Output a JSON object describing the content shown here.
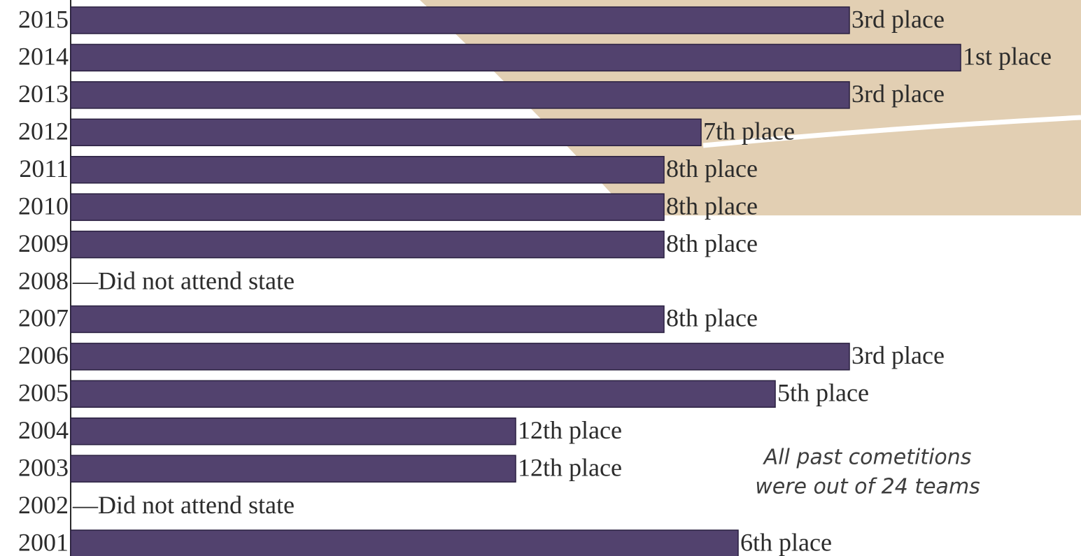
{
  "chart_data": {
    "type": "bar",
    "orientation": "horizontal",
    "categories": [
      "2015",
      "2014",
      "2013",
      "2012",
      "2011",
      "2010",
      "2009",
      "2008",
      "2007",
      "2006",
      "2005",
      "2004",
      "2003",
      "2002",
      "2001"
    ],
    "values": [
      21,
      24,
      21,
      17,
      16,
      16,
      16,
      null,
      16,
      21,
      19,
      12,
      12,
      null,
      18
    ],
    "value_labels": [
      "3rd place",
      "1st place",
      "3rd place",
      "7th place",
      "8th place",
      "8th place",
      "8th place",
      "—Did not attend state",
      "8th place",
      "3rd place",
      "5th place",
      "12th place",
      "12th place",
      "—Did not attend state",
      "6th place"
    ],
    "color": "#52426e",
    "xlim": [
      0,
      27
    ],
    "annotation": [
      "All past cometitions",
      "were out of 24 teams"
    ]
  }
}
